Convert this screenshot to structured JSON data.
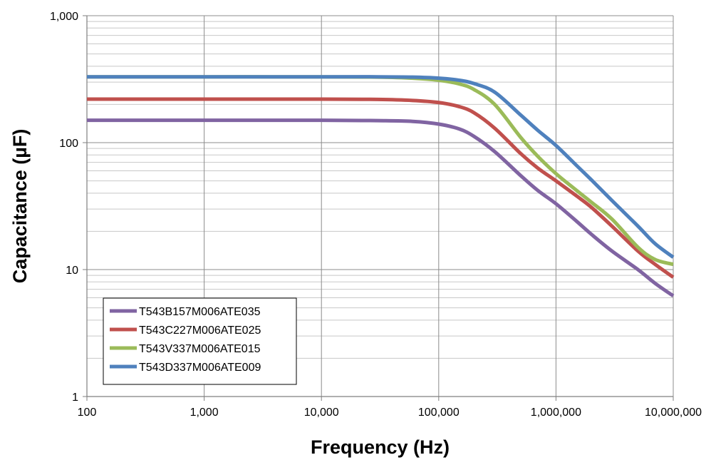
{
  "chart_data": {
    "type": "line",
    "title": "",
    "xlabel": "Frequency (Hz)",
    "ylabel": "Capacitance (µF)",
    "x_scale": "log",
    "y_scale": "log",
    "xlim": [
      100,
      10000000
    ],
    "ylim": [
      1,
      1000
    ],
    "x_ticks": [
      {
        "value": 100,
        "label": "100"
      },
      {
        "value": 1000,
        "label": "1,000"
      },
      {
        "value": 10000,
        "label": "10,000"
      },
      {
        "value": 100000,
        "label": "100,000"
      },
      {
        "value": 1000000,
        "label": "1,000,000"
      },
      {
        "value": 10000000,
        "label": "10,000,000"
      }
    ],
    "y_ticks": [
      {
        "value": 1,
        "label": "1"
      },
      {
        "value": 10,
        "label": "10"
      },
      {
        "value": 100,
        "label": "100"
      },
      {
        "value": 1000,
        "label": "1,000"
      }
    ],
    "grid": true,
    "legend_position": "bottom-left",
    "series": [
      {
        "name": "T543B157M006ATE035",
        "color": "#8064a2",
        "x": [
          100,
          1000,
          10000,
          30000,
          60000,
          100000,
          150000,
          200000,
          300000,
          500000,
          700000,
          1000000,
          1500000,
          2000000,
          3000000,
          5000000,
          7000000,
          10000000
        ],
        "y": [
          150,
          150,
          150,
          149,
          147,
          140,
          128,
          112,
          85,
          55,
          42,
          33,
          24,
          19,
          14,
          10,
          7.8,
          6.2
        ]
      },
      {
        "name": "T543C227M006ATE025",
        "color": "#c0504d",
        "x": [
          100,
          1000,
          10000,
          30000,
          60000,
          100000,
          150000,
          200000,
          300000,
          500000,
          700000,
          1000000,
          1500000,
          2000000,
          3000000,
          5000000,
          7000000,
          10000000
        ],
        "y": [
          220,
          220,
          220,
          219,
          215,
          207,
          192,
          172,
          130,
          82,
          63,
          50,
          38,
          31,
          22,
          14,
          11,
          8.7
        ]
      },
      {
        "name": "T543V337M006ATE015",
        "color": "#9bbb59",
        "x": [
          100,
          1000,
          10000,
          30000,
          60000,
          100000,
          150000,
          200000,
          300000,
          500000,
          700000,
          1000000,
          1500000,
          2000000,
          3000000,
          5000000,
          7000000,
          10000000
        ],
        "y": [
          330,
          330,
          330,
          328,
          322,
          310,
          290,
          262,
          200,
          110,
          78,
          57,
          42,
          34,
          25,
          15,
          12,
          11
        ]
      },
      {
        "name": "T543D337M006ATE009",
        "color": "#4f81bd",
        "x": [
          100,
          1000,
          10000,
          30000,
          60000,
          100000,
          150000,
          200000,
          300000,
          500000,
          700000,
          1000000,
          1500000,
          2000000,
          3000000,
          5000000,
          7000000,
          10000000
        ],
        "y": [
          330,
          330,
          330,
          330,
          328,
          322,
          310,
          292,
          250,
          165,
          125,
          95,
          66,
          51,
          35,
          22,
          16,
          12.5
        ]
      }
    ]
  }
}
